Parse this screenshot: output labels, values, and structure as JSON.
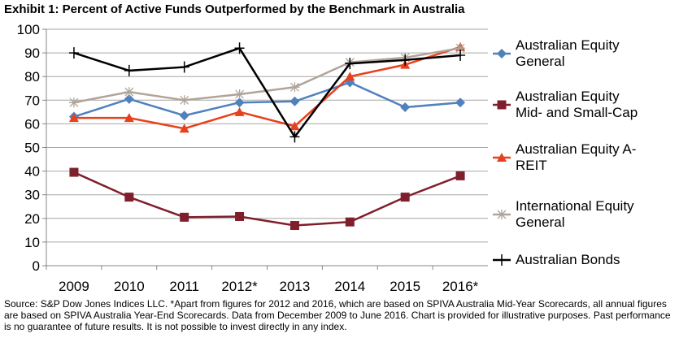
{
  "chart_data": {
    "type": "line",
    "title": "Exhibit 1: Percent of Active Funds Outperformed by the Benchmark in Australia",
    "categories": [
      "2009",
      "2010",
      "2011",
      "2012*",
      "2013",
      "2014",
      "2015",
      "2016*"
    ],
    "ylim": [
      0,
      100
    ],
    "yticks": [
      "0",
      "10",
      "20",
      "30",
      "40",
      "50",
      "60",
      "70",
      "80",
      "90",
      "100"
    ],
    "grid": true,
    "legend_position": "right",
    "series": [
      {
        "name": "Australian Equity General",
        "color": "#4f81bd",
        "marker": "diamond",
        "values": [
          63,
          70.5,
          63.5,
          69,
          69.5,
          77.5,
          67,
          69
        ]
      },
      {
        "name": "Australian Equity Mid- and Small-Cap",
        "color": "#7f1f2b",
        "marker": "square",
        "values": [
          39.5,
          29,
          20.5,
          20.8,
          17,
          18.5,
          29,
          38
        ]
      },
      {
        "name": "Australian Equity A-REIT",
        "color": "#e8401c",
        "marker": "triangle",
        "values": [
          62.5,
          62.5,
          58,
          65,
          59,
          80,
          85,
          92.5
        ]
      },
      {
        "name": "International Equity General",
        "color": "#b0a499",
        "marker": "star",
        "values": [
          69,
          73.5,
          70,
          72.5,
          75.5,
          86,
          88,
          92
        ]
      },
      {
        "name": "Australian Bonds",
        "color": "#000000",
        "marker": "plus",
        "values": [
          90,
          82.5,
          84,
          92,
          54.5,
          85.5,
          87,
          89
        ]
      }
    ]
  },
  "legend_lines": [
    [
      "Australian Equity",
      "General"
    ],
    [
      "Australian Equity",
      "Mid- and Small-Cap"
    ],
    [
      "Australian Equity A-",
      "REIT"
    ],
    [
      "International Equity",
      "General"
    ],
    [
      "Australian Bonds"
    ]
  ],
  "source": "Source: S&P Dow Jones Indices LLC.  *Apart from figures for 2012 and 2016, which are based on SPIVA Australia Mid-Year Scorecards, all annual figures are based on SPIVA Australia Year-End Scorecards.  Data from December 2009 to June 2016.  Chart is provided for illustrative purposes.  Past performance is no guarantee of future results.  It is not possible to invest directly in any index."
}
